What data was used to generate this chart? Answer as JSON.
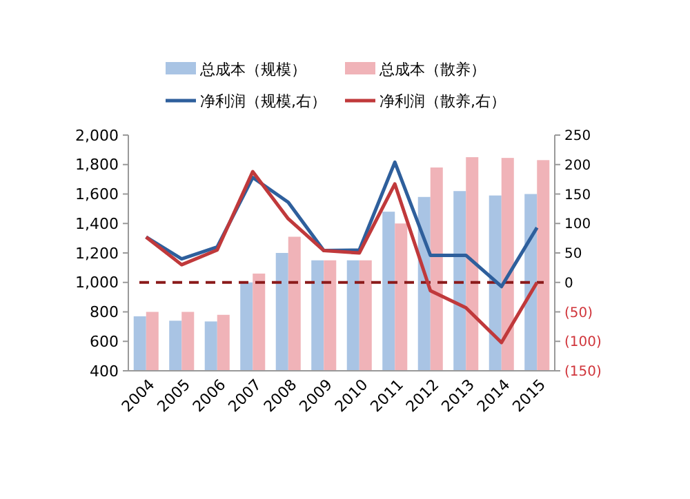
{
  "chart_data": {
    "type": "bar",
    "categories": [
      "2004",
      "2005",
      "2006",
      "2007",
      "2008",
      "2009",
      "2010",
      "2011",
      "2012",
      "2013",
      "2014",
      "2015"
    ],
    "series": [
      {
        "name": "总成本（规模）",
        "color": "#a9c4e4",
        "values": [
          770,
          740,
          735,
          1000,
          1200,
          1150,
          1150,
          1480,
          1580,
          1620,
          1590,
          1600
        ]
      },
      {
        "name": "总成本（散养）",
        "color": "#f0b3b8",
        "values": [
          800,
          800,
          780,
          1060,
          1310,
          1150,
          1150,
          1400,
          1780,
          1850,
          1845,
          1830
        ]
      },
      {
        "name": "净利润（规模,右）",
        "type": "line",
        "axis": "y2",
        "color": "#2e5f9c",
        "values": [
          77,
          40,
          60,
          178,
          136,
          54,
          55,
          204,
          46,
          46,
          -7,
          93
        ]
      },
      {
        "name": "净利润（散养,右）",
        "type": "line",
        "axis": "y2",
        "color": "#c0393b",
        "values": [
          77,
          30,
          55,
          188,
          108,
          54,
          50,
          167,
          -14,
          -43,
          -102,
          0
        ]
      }
    ],
    "ylim": [
      400,
      2000
    ],
    "yticks": [
      {
        "value": 400,
        "label": "400"
      },
      {
        "value": 600,
        "label": "600"
      },
      {
        "value": 800,
        "label": "800"
      },
      {
        "value": 1000,
        "label": "1,000"
      },
      {
        "value": 1200,
        "label": "1,200"
      },
      {
        "value": 1400,
        "label": "1,400"
      },
      {
        "value": 1600,
        "label": "1,600"
      },
      {
        "value": 1800,
        "label": "1,800"
      },
      {
        "value": 2000,
        "label": "2,000"
      }
    ],
    "y2lim": [
      -150,
      250
    ],
    "y2ticks": [
      {
        "value": -150,
        "label": "(150)"
      },
      {
        "value": -100,
        "label": "(100)"
      },
      {
        "value": -50,
        "label": "(50)"
      },
      0,
      50,
      100,
      150,
      200,
      250
    ],
    "ref_lines": [
      {
        "axis": "y2",
        "value": 0,
        "color": "#8b1a1a",
        "line_style": "dashed"
      }
    ],
    "legend": "top",
    "grid": false,
    "marker": "none",
    "line_style": "solid"
  }
}
